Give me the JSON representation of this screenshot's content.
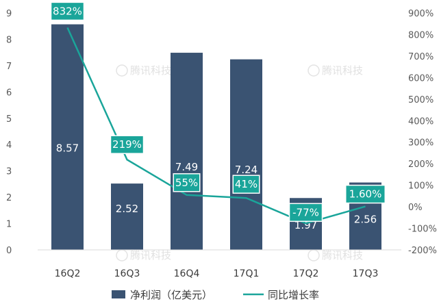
{
  "chart_data": {
    "type": "bar",
    "categories": [
      "16Q2",
      "16Q3",
      "16Q4",
      "17Q1",
      "17Q2",
      "17Q3"
    ],
    "series": [
      {
        "name": "净利润（亿美元）",
        "type": "bar",
        "axis": "left",
        "values": [
          8.57,
          2.52,
          7.49,
          7.24,
          1.97,
          2.56
        ],
        "value_labels": [
          "8.57",
          "2.52",
          "7.49",
          "7.24",
          "1.97",
          "2.56"
        ],
        "color": "#3a5372"
      },
      {
        "name": "同比增长率",
        "type": "line",
        "axis": "right",
        "values": [
          832,
          219,
          55,
          41,
          -77,
          1.6
        ],
        "value_labels": [
          "832%",
          "219%",
          "55%",
          "41%",
          "-77%",
          "1.60%"
        ],
        "color": "#1aa59a"
      }
    ],
    "y_left": {
      "min": 0,
      "max": 9,
      "ticks": [
        "0",
        "1",
        "2",
        "3",
        "4",
        "5",
        "6",
        "7",
        "8",
        "9"
      ]
    },
    "y_right": {
      "min": -200,
      "max": 900,
      "ticks": [
        "-200%",
        "-100%",
        "0%",
        "100%",
        "200%",
        "300%",
        "400%",
        "500%",
        "600%",
        "700%",
        "800%",
        "900%"
      ]
    },
    "grid": false,
    "legend_position": "bottom"
  },
  "watermark": "腾讯科技"
}
